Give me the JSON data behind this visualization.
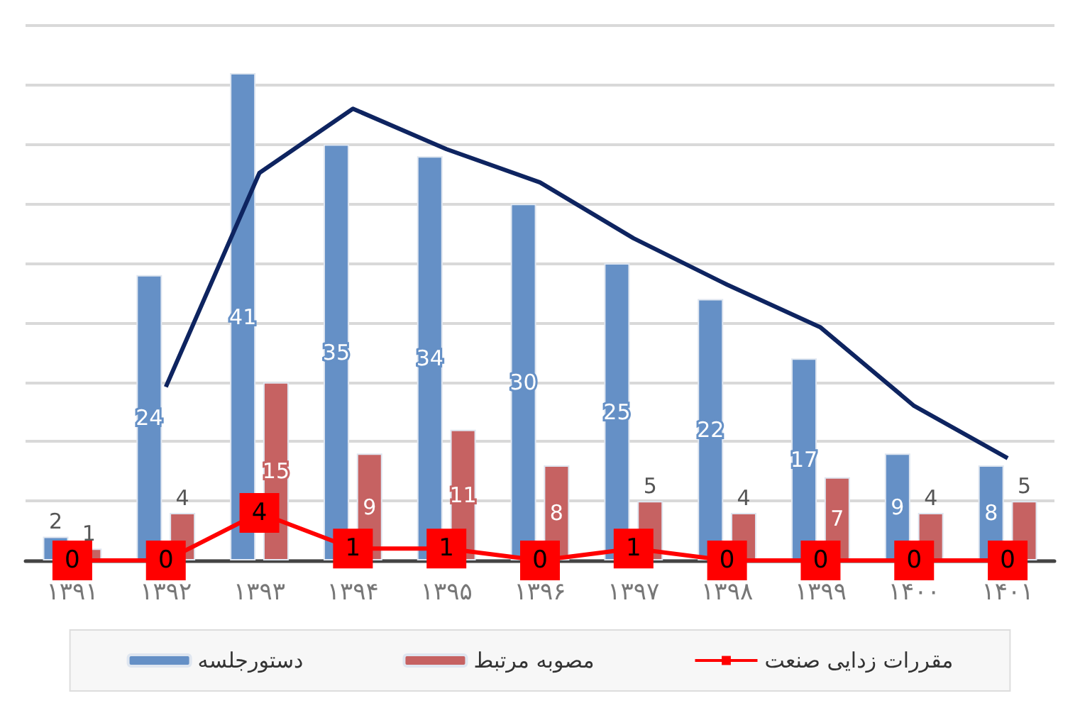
{
  "chart_data": {
    "type": "bar",
    "categories": [
      "۱۳۹۱",
      "۱۳۹۲",
      "۱۳۹۳",
      "۱۳۹۴",
      "۱۳۹۵",
      "۱۳۹۶",
      "۱۳۹۷",
      "۱۳۹۸",
      "۱۳۹۹",
      "۱۴۰۰",
      "۱۴۰۱"
    ],
    "series": [
      {
        "type": "bar",
        "name": "دستورجلسه",
        "color": "#6590c6",
        "values": [
          2,
          24,
          41,
          35,
          34,
          30,
          25,
          22,
          17,
          9,
          8
        ]
      },
      {
        "type": "bar",
        "name": "مصوبه مرتبط",
        "color": "#c66262",
        "values": [
          1,
          4,
          15,
          9,
          11,
          8,
          5,
          4,
          7,
          4,
          5
        ]
      },
      {
        "type": "line",
        "name": "مقررات زدایی صنعت",
        "color": "#ff0000",
        "marker": "square",
        "values": [
          0,
          0,
          4,
          1,
          1,
          0,
          1,
          0,
          0,
          0,
          0
        ]
      },
      {
        "type": "line",
        "color": "#0e2460",
        "marker": "none",
        "value_labels": [
          null,
          null,
          null,
          null,
          null,
          null,
          null,
          null,
          null,
          null,
          null
        ],
        "values": [
          null,
          14.6,
          32.6,
          38,
          34.6,
          31.8,
          27.1,
          23.2,
          19.6,
          13,
          8.6
        ]
      }
    ],
    "ylim": [
      0,
      45
    ],
    "yticks": [
      {
        "value": 0,
        "label": null
      },
      {
        "value": 5,
        "label": null
      },
      {
        "value": 10,
        "label": null
      },
      {
        "value": 15,
        "label": null
      },
      {
        "value": 20,
        "label": null
      },
      {
        "value": 25,
        "label": null
      },
      {
        "value": 30,
        "label": null
      },
      {
        "value": 35,
        "label": null
      },
      {
        "value": 40,
        "label": null
      },
      {
        "value": 45,
        "label": null
      }
    ],
    "grid": "y",
    "legend": "bottom",
    "data_labels": true,
    "tick_labels": "x"
  }
}
